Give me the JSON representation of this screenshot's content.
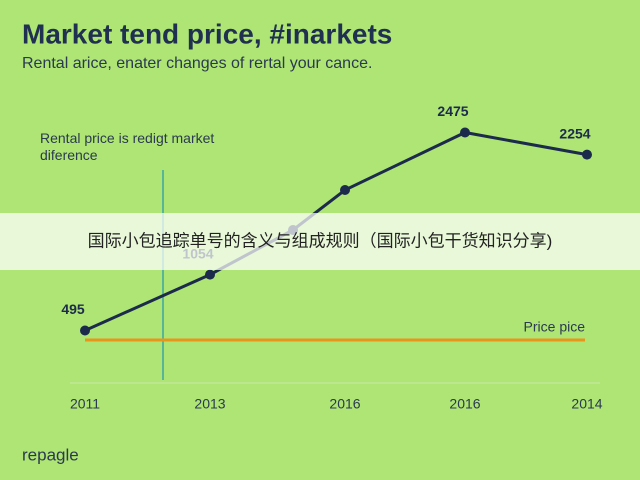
{
  "chart_data": {
    "type": "line",
    "title": "Market tend price, #inarkets",
    "subtitle": "Rental arice, enater changes of rertal your cance.",
    "annotation": "Rental price is redigt market diference",
    "categories": [
      "2011",
      "2013",
      null,
      "2016",
      "2016",
      "2014"
    ],
    "series": [
      {
        "name": "Rental price",
        "color": "#1c2b4c",
        "values": [
          495,
          1054,
          1500,
          1900,
          2475,
          2254
        ],
        "value_labels": [
          "495",
          "1054",
          null,
          null,
          "2475",
          "2254"
        ]
      }
    ],
    "reference": {
      "label": "Price pice",
      "value": 400,
      "color": "#e8951b"
    },
    "ylim": [
      0,
      2600
    ],
    "footer": "repagle",
    "banner": "国际小包追踪单号的含义与组成规则（国际小包干货知识分享)"
  }
}
